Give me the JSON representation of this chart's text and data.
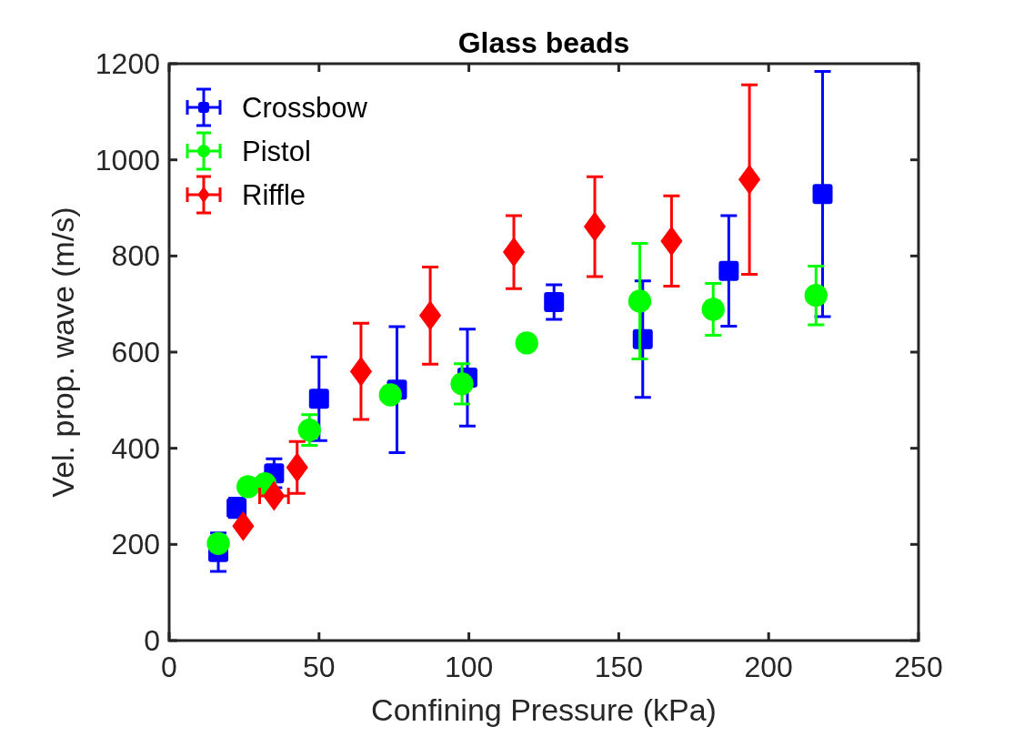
{
  "chart_data": {
    "type": "scatter",
    "title": "Glass beads",
    "xlabel": "Confining Pressure (kPa)",
    "ylabel": "Vel. prop. wave (m/s)",
    "xlim": [
      0,
      250
    ],
    "xticks": [
      0,
      50,
      100,
      150,
      200,
      250
    ],
    "ylim": [
      0,
      1200
    ],
    "yticks": [
      0,
      200,
      400,
      600,
      800,
      1000,
      1200
    ],
    "grid": false,
    "legend": "top left",
    "series": [
      {
        "name": "Crossbow",
        "color": "#0000ff",
        "marker": "square",
        "x": [
          16.4,
          22.5,
          35,
          50,
          76,
          99.5,
          128.4,
          158,
          186.7,
          218
        ],
        "values": [
          184,
          276,
          348,
          503,
          522,
          547,
          704,
          627,
          769,
          929
        ],
        "errors": [
          40,
          20,
          30,
          87,
          131,
          101,
          36,
          121,
          115,
          255
        ]
      },
      {
        "name": "Pistol",
        "color": "#00ff00",
        "marker": "circle",
        "x": [
          16.4,
          26.3,
          32,
          46.8,
          73.8,
          97.7,
          119.3,
          157,
          181.5,
          215.8
        ],
        "values": [
          202,
          320,
          326,
          438,
          511,
          534,
          619,
          706,
          689,
          718
        ],
        "errors": [
          null,
          null,
          null,
          32,
          null,
          42,
          null,
          120,
          54,
          61
        ]
      },
      {
        "name": "Riffle",
        "color": "#ff0000",
        "marker": "diamond",
        "x": [
          24.7,
          35,
          42.7,
          64,
          87.1,
          115,
          142,
          167.6,
          193.6
        ],
        "values": [
          238,
          301,
          360,
          560,
          676,
          808,
          861,
          831,
          959
        ],
        "errors": [
          null,
          null,
          54,
          100,
          101,
          76,
          104,
          94,
          197
        ],
        "xerrors": [
          null,
          4.8,
          null,
          null,
          null,
          null,
          null,
          null,
          null
        ]
      }
    ]
  }
}
